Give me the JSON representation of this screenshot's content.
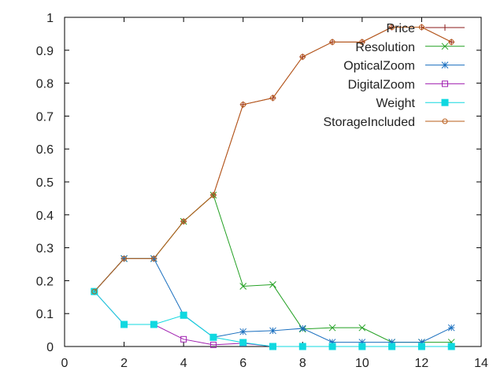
{
  "chart_data": {
    "type": "line",
    "title": "",
    "xlabel": "",
    "ylabel": "",
    "xlim": [
      0,
      14
    ],
    "ylim": [
      0,
      1
    ],
    "xticks": [
      0,
      2,
      4,
      6,
      8,
      10,
      12,
      14
    ],
    "yticks": [
      0,
      0.1,
      0.2,
      0.3,
      0.4,
      0.5,
      0.6,
      0.7,
      0.8,
      0.9,
      1
    ],
    "xtick_labels": [
      "0",
      "2",
      "4",
      "6",
      "8",
      "10",
      "12",
      "14"
    ],
    "ytick_labels": [
      "0",
      "0.1",
      "0.2",
      "0.3",
      "0.4",
      "0.5",
      "0.6",
      "0.7",
      "0.8",
      "0.9",
      "1"
    ],
    "grid": false,
    "legend_position": "top-right",
    "x": [
      1,
      2,
      3,
      4,
      5,
      6,
      7,
      8,
      9,
      10,
      11,
      12,
      13
    ],
    "series": [
      {
        "name": "Price",
        "color": "#8b1a1a",
        "marker": "plus",
        "values": [
          0.167,
          0.267,
          0.267,
          0.38,
          0.46,
          0.735,
          0.755,
          0.88,
          0.925,
          0.925,
          0.97,
          0.97,
          0.925
        ]
      },
      {
        "name": "Resolution",
        "color": "#22a022",
        "marker": "cross",
        "values": [
          0.167,
          0.267,
          0.267,
          0.38,
          0.46,
          0.183,
          0.188,
          0.053,
          0.057,
          0.057,
          0.013,
          0.013,
          0.013
        ]
      },
      {
        "name": "OpticalZoom",
        "color": "#1a6fbf",
        "marker": "star",
        "values": [
          0.167,
          0.267,
          0.267,
          0.096,
          0.028,
          0.045,
          0.048,
          0.055,
          0.013,
          0.013,
          0.013,
          0.013,
          0.057
        ]
      },
      {
        "name": "DigitalZoom",
        "color": "#a020b0",
        "marker": "open-square",
        "values": [
          0.167,
          0.067,
          0.067,
          0.022,
          0.005,
          0.01,
          0.0,
          0.0,
          0.0,
          0.0,
          0.0,
          0.0,
          0.0
        ]
      },
      {
        "name": "Weight",
        "color": "#10d8e0",
        "marker": "filled-square",
        "values": [
          0.167,
          0.067,
          0.067,
          0.095,
          0.028,
          0.012,
          0.0,
          0.0,
          0.0,
          0.0,
          0.0,
          0.0,
          0.0
        ]
      },
      {
        "name": "StorageIncluded",
        "color": "#b85c1a",
        "marker": "open-circle",
        "values": [
          0.167,
          0.267,
          0.267,
          0.38,
          0.46,
          0.735,
          0.755,
          0.88,
          0.925,
          0.925,
          0.97,
          0.97,
          0.925
        ]
      }
    ]
  }
}
